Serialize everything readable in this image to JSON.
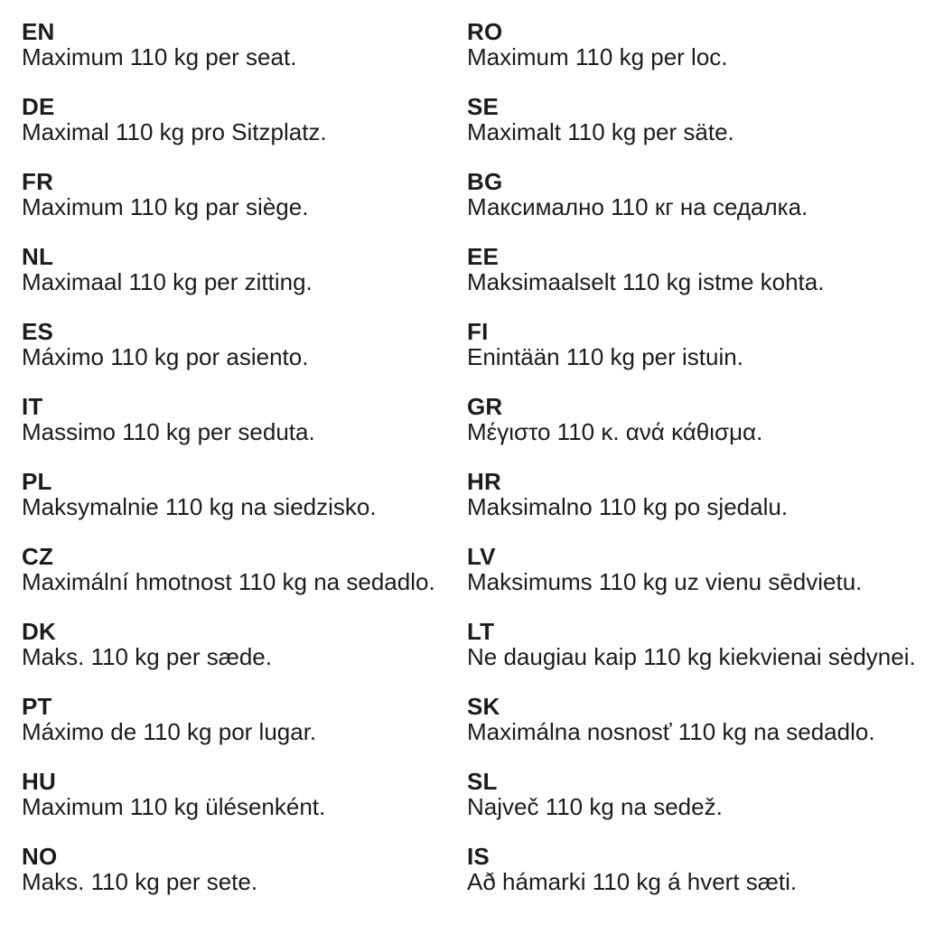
{
  "page": {
    "background_color": "#ffffff",
    "text_color": "#1c1c1c",
    "description": "Multilingual seat weight limit notice sheet"
  },
  "columns": [
    {
      "items": [
        {
          "code": "EN",
          "text": "Maximum 110 kg per seat."
        },
        {
          "code": "DE",
          "text": "Maximal 110 kg pro Sitzplatz."
        },
        {
          "code": "FR",
          "text": "Maximum 110 kg par siège."
        },
        {
          "code": "NL",
          "text": "Maximaal 110 kg per zitting."
        },
        {
          "code": "ES",
          "text": "Máximo 110 kg por asiento."
        },
        {
          "code": "IT",
          "text": "Massimo 110 kg per seduta."
        },
        {
          "code": "PL",
          "text": "Maksymalnie 110 kg na siedzisko."
        },
        {
          "code": "CZ",
          "text": "Maximální hmotnost 110 kg na sedadlo."
        },
        {
          "code": "DK",
          "text": "Maks. 110 kg per sæde."
        },
        {
          "code": "PT",
          "text": "Máximo de 110 kg por lugar."
        },
        {
          "code": "HU",
          "text": "Maximum 110 kg ülésenként."
        },
        {
          "code": "NO",
          "text": "Maks. 110 kg per sete."
        }
      ]
    },
    {
      "items": [
        {
          "code": "RO",
          "text": "Maximum 110 kg per loc."
        },
        {
          "code": "SE",
          "text": "Maximalt 110 kg per säte."
        },
        {
          "code": "BG",
          "text": "Максимално 110 кг на седалка."
        },
        {
          "code": "EE",
          "text": "Maksimaalselt 110 kg istme kohta."
        },
        {
          "code": "FI",
          "text": "Enintään 110 kg per istuin."
        },
        {
          "code": "GR",
          "text": "Μέγιστο 110 κ. ανά κάθισμα."
        },
        {
          "code": "HR",
          "text": "Maksimalno 110 kg po sjedalu."
        },
        {
          "code": "LV",
          "text": "Maksimums 110 kg uz vienu sēdvietu."
        },
        {
          "code": "LT",
          "text": "Ne daugiau kaip 110 kg kiekvienai sėdynei."
        },
        {
          "code": "SK",
          "text": "Maximálna nosnosť 110 kg na sedadlo."
        },
        {
          "code": "SL",
          "text": "Največ 110 kg na sedež."
        },
        {
          "code": "IS",
          "text": "Að hámarki 110 kg á hvert sæti."
        }
      ]
    }
  ]
}
